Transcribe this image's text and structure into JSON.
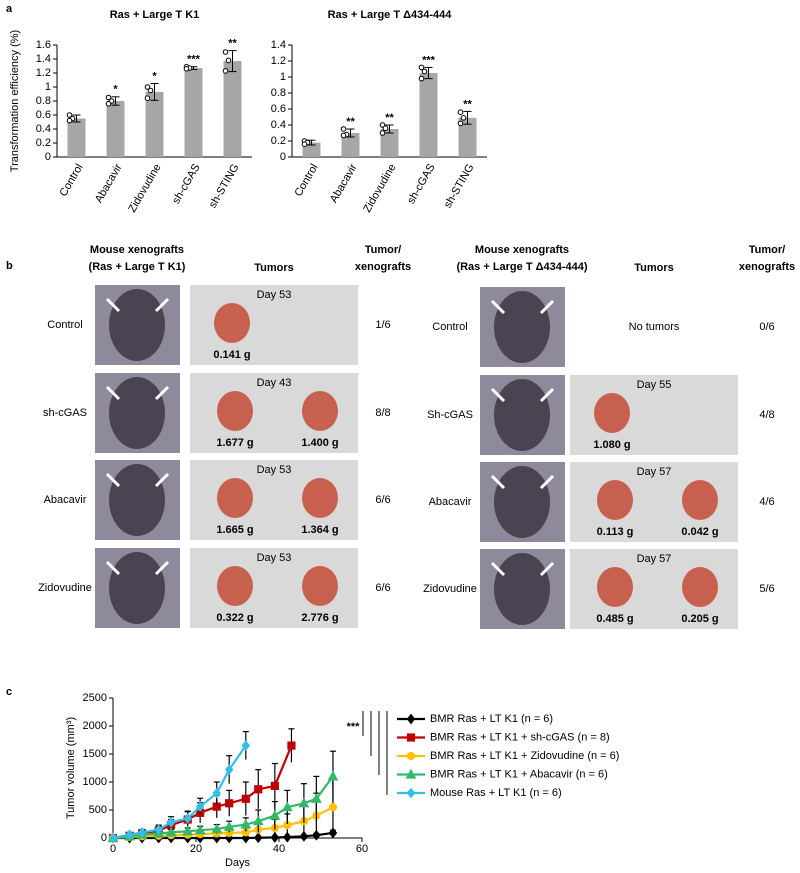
{
  "panel_labels": [
    "a",
    "b",
    "c"
  ],
  "chart_data": [
    {
      "type": "bar",
      "title": "Ras + Large T K1",
      "y_label": "Transformation efficiency (%)",
      "categories": [
        "Control",
        "Abacavir",
        "Zidovudine",
        "sh-cGAS",
        "sh-STING"
      ],
      "values": [
        0.55,
        0.8,
        0.93,
        1.27,
        1.37
      ],
      "errors": [
        0.05,
        0.06,
        0.12,
        0.02,
        0.15
      ],
      "points": [
        [
          0.6,
          0.55,
          0.52
        ],
        [
          0.85,
          0.8,
          0.76
        ],
        [
          1.0,
          0.95,
          0.84
        ],
        [
          1.29,
          1.27,
          1.26
        ],
        [
          1.5,
          1.38,
          1.23
        ]
      ],
      "significance": [
        null,
        "*",
        "*",
        "***",
        "**"
      ],
      "color": "#a6a6a6",
      "ylim": [
        0,
        1.6
      ],
      "yticks": [
        0,
        0.2,
        0.4,
        0.6,
        0.8,
        1,
        1.2,
        1.4,
        1.6
      ]
    },
    {
      "type": "bar",
      "title": "Ras + Large T Δ434-444",
      "categories": [
        "Control",
        "Abacavir",
        "Zidovudine",
        "sh-cGAS",
        "sh-STING"
      ],
      "values": [
        0.18,
        0.3,
        0.35,
        1.05,
        0.49
      ],
      "errors": [
        0.03,
        0.05,
        0.05,
        0.07,
        0.08
      ],
      "points": [
        [
          0.2,
          0.18,
          0.16
        ],
        [
          0.35,
          0.28,
          0.27
        ],
        [
          0.4,
          0.36,
          0.3
        ],
        [
          1.12,
          1.07,
          0.98
        ],
        [
          0.56,
          0.49,
          0.42
        ]
      ],
      "significance": [
        null,
        "**",
        "**",
        "***",
        "**"
      ],
      "color": "#a6a6a6",
      "ylim": [
        0,
        1.4
      ],
      "yticks": [
        0,
        0.2,
        0.4,
        0.6,
        0.8,
        1,
        1.2,
        1.4
      ]
    },
    {
      "type": "line",
      "y_label": "Tumor volume (mm³)",
      "x_label": "Days",
      "annotation": "***",
      "xlim": [
        0,
        60
      ],
      "xticks": [
        0,
        20,
        40,
        60
      ],
      "ylim": [
        0,
        2500
      ],
      "yticks": [
        0,
        500,
        1000,
        1500,
        2000,
        2500
      ],
      "series": [
        {
          "name": "BMR Ras + LT K1 (n = 6)",
          "color": "#000000",
          "marker": "diamond",
          "x": [
            0,
            4,
            7,
            11,
            14,
            18,
            21,
            25,
            28,
            32,
            35,
            39,
            42,
            46,
            49,
            53
          ],
          "values": [
            0,
            0,
            0,
            0,
            0,
            0,
            0,
            0,
            0,
            0,
            5,
            10,
            15,
            30,
            50,
            90
          ],
          "errors": [
            0,
            0,
            0,
            0,
            0,
            0,
            0,
            0,
            0,
            0,
            10,
            10,
            15,
            20,
            30,
            50
          ]
        },
        {
          "name": "BMR Ras + LT K1 + sh-cGAS (n = 8)",
          "color": "#c00000",
          "marker": "square",
          "x": [
            0,
            4,
            7,
            11,
            14,
            18,
            21,
            25,
            28,
            32,
            35,
            39,
            43
          ],
          "values": [
            0,
            40,
            80,
            130,
            230,
            330,
            450,
            560,
            620,
            700,
            870,
            930,
            1650
          ],
          "errors": [
            0,
            30,
            50,
            80,
            100,
            150,
            180,
            200,
            230,
            300,
            350,
            400,
            300
          ]
        },
        {
          "name": "BMR Ras + LT K1 + Zidovudine (n = 6)",
          "color": "#ffc000",
          "marker": "circle",
          "x": [
            0,
            4,
            7,
            11,
            14,
            18,
            21,
            25,
            28,
            32,
            35,
            39,
            42,
            46,
            49,
            53
          ],
          "values": [
            0,
            20,
            30,
            40,
            50,
            60,
            70,
            80,
            90,
            100,
            150,
            180,
            230,
            300,
            400,
            550
          ],
          "errors": [
            0,
            10,
            15,
            20,
            25,
            30,
            40,
            50,
            60,
            80,
            100,
            150,
            200,
            300,
            400,
            500
          ]
        },
        {
          "name": "BMR Ras + LT K1 + Abacavir (n = 6)",
          "color": "#33b86a",
          "marker": "triangle",
          "x": [
            0,
            4,
            7,
            11,
            14,
            18,
            21,
            25,
            28,
            32,
            35,
            39,
            42,
            46,
            49,
            53
          ],
          "values": [
            0,
            30,
            60,
            80,
            100,
            120,
            140,
            160,
            200,
            240,
            300,
            400,
            550,
            620,
            700,
            1100
          ],
          "errors": [
            0,
            20,
            30,
            40,
            50,
            60,
            70,
            80,
            100,
            120,
            200,
            250,
            300,
            350,
            400,
            450
          ]
        },
        {
          "name": "Mouse Ras + LT K1 (n = 6)",
          "color": "#33bfe8",
          "marker": "diamond",
          "x": [
            0,
            4,
            7,
            11,
            14,
            18,
            21,
            25,
            28,
            32
          ],
          "values": [
            0,
            60,
            100,
            150,
            280,
            350,
            560,
            800,
            1220,
            1650
          ],
          "errors": [
            0,
            30,
            50,
            80,
            100,
            120,
            150,
            200,
            250,
            250
          ]
        }
      ]
    }
  ],
  "panel_b": {
    "left": {
      "header": [
        "Mouse xenografts",
        "(Ras + Large T K1)"
      ],
      "tumors_header": "Tumors",
      "ratio_header": [
        "Tumor/",
        "xenografts"
      ],
      "rows": [
        {
          "label": "Control",
          "day": "Day 53",
          "weights": [
            "0.141 g"
          ],
          "ratio": "1/6"
        },
        {
          "label": "sh-cGAS",
          "day": "Day 43",
          "weights": [
            "1.677 g",
            "1.400 g"
          ],
          "ratio": "8/8"
        },
        {
          "label": "Abacavir",
          "day": "Day 53",
          "weights": [
            "1.665 g",
            "1.364 g"
          ],
          "ratio": "6/6"
        },
        {
          "label": "Zidovudine",
          "day": "Day 53",
          "weights": [
            "0.322 g",
            "2.776 g"
          ],
          "ratio": "6/6"
        }
      ]
    },
    "right": {
      "header": [
        "Mouse xenografts",
        "(Ras + Large T Δ434-444)"
      ],
      "tumors_header": "Tumors",
      "ratio_header": [
        "Tumor/",
        "xenografts"
      ],
      "rows": [
        {
          "label": "Control",
          "tumors_text": "No tumors",
          "ratio": "0/6"
        },
        {
          "label": "Sh-cGAS",
          "day": "Day 55",
          "weights": [
            "1.080 g"
          ],
          "ratio": "4/8"
        },
        {
          "label": "Abacavir",
          "day": "Day 57",
          "weights": [
            "0.113 g",
            "0.042 g"
          ],
          "ratio": "4/6"
        },
        {
          "label": "Zidovudine",
          "day": "Day 57",
          "weights": [
            "0.485 g",
            "0.205 g"
          ],
          "ratio": "5/6"
        }
      ]
    }
  }
}
